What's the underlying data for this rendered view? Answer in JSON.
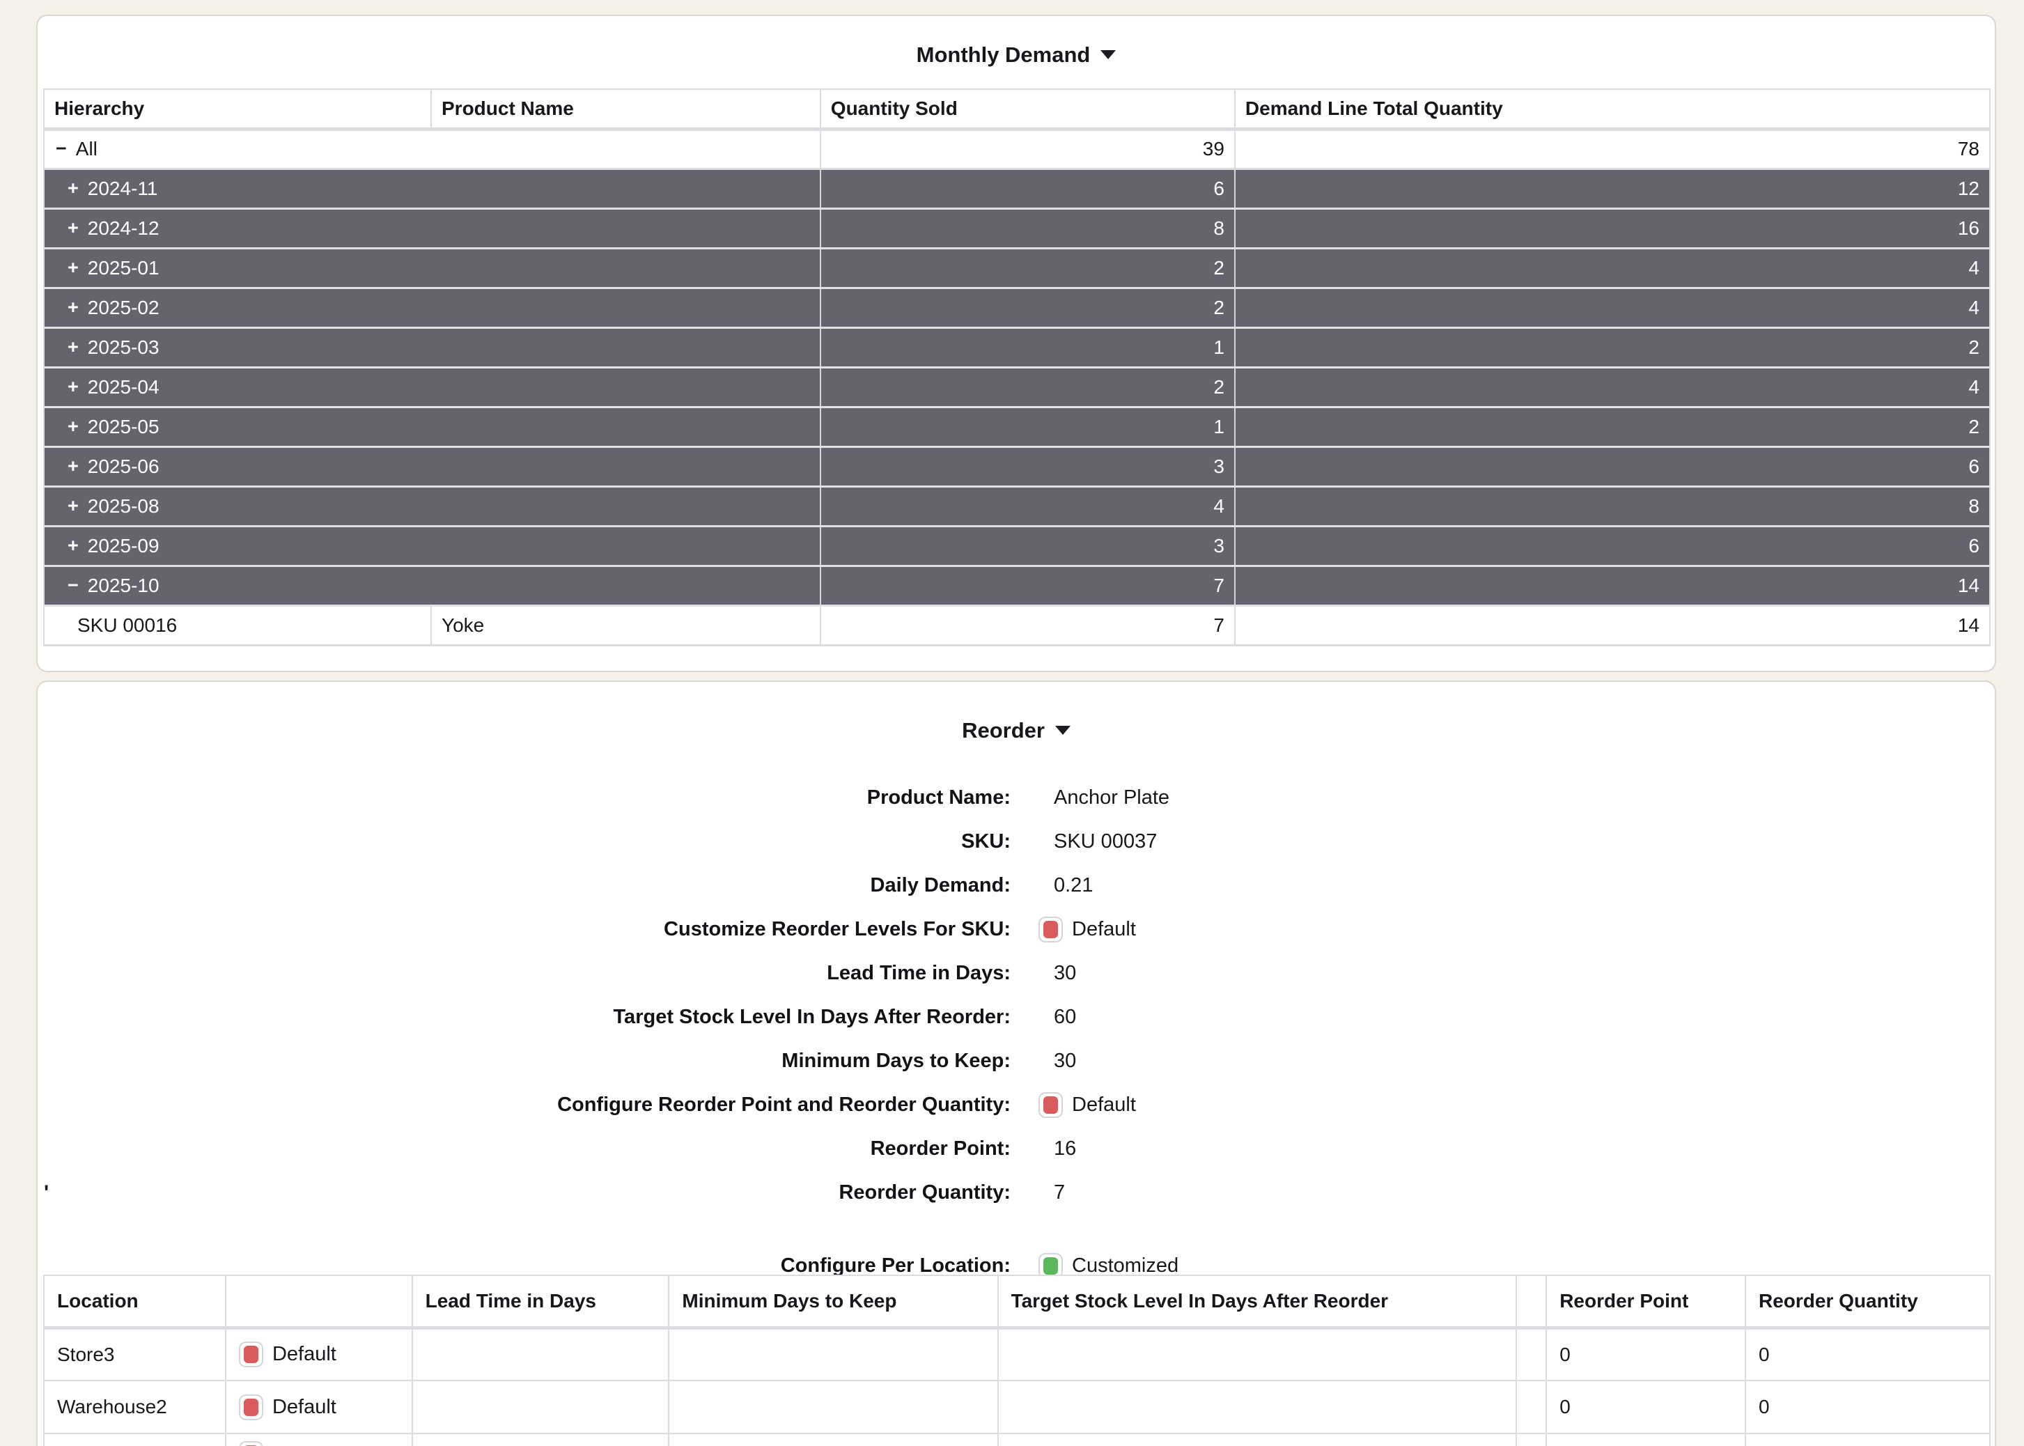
{
  "colors": {
    "page_bg": "#F5F1E8",
    "dark_row": "#64646F",
    "accent_red": "#D95B5B",
    "accent_green": "#5CB85C"
  },
  "monthly_demand": {
    "title": "Monthly Demand",
    "columns": [
      "Hierarchy",
      "Product Name",
      "Quantity Sold",
      "Demand Line Total Quantity"
    ],
    "rows": [
      {
        "level": "root",
        "icon": "minus",
        "hierarchy": "All",
        "product": "",
        "quantity_sold": "39",
        "demand_total": "78",
        "style": "light"
      },
      {
        "level": "group",
        "icon": "plus",
        "hierarchy": "2024-11",
        "product": "",
        "quantity_sold": "6",
        "demand_total": "12",
        "style": "dark"
      },
      {
        "level": "group",
        "icon": "plus",
        "hierarchy": "2024-12",
        "product": "",
        "quantity_sold": "8",
        "demand_total": "16",
        "style": "dark"
      },
      {
        "level": "group",
        "icon": "plus",
        "hierarchy": "2025-01",
        "product": "",
        "quantity_sold": "2",
        "demand_total": "4",
        "style": "dark"
      },
      {
        "level": "group",
        "icon": "plus",
        "hierarchy": "2025-02",
        "product": "",
        "quantity_sold": "2",
        "demand_total": "4",
        "style": "dark"
      },
      {
        "level": "group",
        "icon": "plus",
        "hierarchy": "2025-03",
        "product": "",
        "quantity_sold": "1",
        "demand_total": "2",
        "style": "dark"
      },
      {
        "level": "group",
        "icon": "plus",
        "hierarchy": "2025-04",
        "product": "",
        "quantity_sold": "2",
        "demand_total": "4",
        "style": "dark"
      },
      {
        "level": "group",
        "icon": "plus",
        "hierarchy": "2025-05",
        "product": "",
        "quantity_sold": "1",
        "demand_total": "2",
        "style": "dark"
      },
      {
        "level": "group",
        "icon": "plus",
        "hierarchy": "2025-06",
        "product": "",
        "quantity_sold": "3",
        "demand_total": "6",
        "style": "dark"
      },
      {
        "level": "group",
        "icon": "plus",
        "hierarchy": "2025-08",
        "product": "",
        "quantity_sold": "4",
        "demand_total": "8",
        "style": "dark"
      },
      {
        "level": "group",
        "icon": "plus",
        "hierarchy": "2025-09",
        "product": "",
        "quantity_sold": "3",
        "demand_total": "6",
        "style": "dark"
      },
      {
        "level": "group",
        "icon": "minus",
        "hierarchy": "2025-10",
        "product": "",
        "quantity_sold": "7",
        "demand_total": "14",
        "style": "dark"
      },
      {
        "level": "leaf",
        "icon": null,
        "hierarchy": "SKU 00016",
        "product": "Yoke",
        "quantity_sold": "7",
        "demand_total": "14",
        "style": "light"
      }
    ]
  },
  "reorder": {
    "title": "Reorder",
    "fields": [
      {
        "label": "Product Name:",
        "value": "Anchor Plate",
        "checkbox": null
      },
      {
        "label": "SKU:",
        "value": "SKU 00037",
        "checkbox": null
      },
      {
        "label": "Daily Demand:",
        "value": "0.21",
        "checkbox": null
      },
      {
        "label": "Customize Reorder Levels For SKU:",
        "value": "Default",
        "checkbox": "red"
      },
      {
        "label": "Lead Time in Days:",
        "value": "30",
        "checkbox": null
      },
      {
        "label": "Target Stock Level In Days After Reorder:",
        "value": "60",
        "checkbox": null
      },
      {
        "label": "Minimum Days to Keep:",
        "value": "30",
        "checkbox": null
      },
      {
        "label": "Configure Reorder Point and Reorder Quantity:",
        "value": "Default",
        "checkbox": "red"
      },
      {
        "label": "Reorder Point:",
        "value": "16",
        "checkbox": null
      },
      {
        "label": "Reorder Quantity:",
        "value": "7",
        "checkbox": null
      }
    ],
    "stray_mark": "'",
    "configure_per_location": {
      "label": "Configure Per Location:",
      "value": "Customized",
      "checkbox": "green"
    },
    "location_table": {
      "columns": [
        "Location",
        "",
        "Lead Time in Days",
        "Minimum Days to Keep",
        "Target Stock Level In Days After Reorder",
        "",
        "Reorder Point",
        "Reorder Quantity"
      ],
      "rows": [
        {
          "location": "Store3",
          "checkbox": "red",
          "checkbox_label": "Default",
          "lead_time": "",
          "min_days": "",
          "target_stock": "",
          "reorder_point": "0",
          "reorder_quantity": "0",
          "partial": false
        },
        {
          "location": "Warehouse2",
          "checkbox": "red",
          "checkbox_label": "Default",
          "lead_time": "",
          "min_days": "",
          "target_stock": "",
          "reorder_point": "0",
          "reorder_quantity": "0",
          "partial": false
        },
        {
          "location": "",
          "checkbox": "red",
          "checkbox_label": "",
          "lead_time": "",
          "min_days": "",
          "target_stock": "",
          "reorder_point": "",
          "reorder_quantity": "",
          "partial": true
        }
      ]
    }
  }
}
